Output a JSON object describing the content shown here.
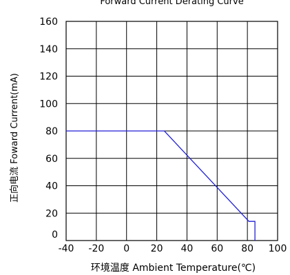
{
  "chart_data": {
    "type": "line",
    "title": "Forward Current Derating Curve",
    "xlabel": "环境温度  Ambient Temperature(℃)",
    "ylabel": "正向电流 Foward Current(mA)",
    "xlim": [
      -40,
      100
    ],
    "ylim": [
      0,
      160
    ],
    "x_ticks": [
      "-40",
      "-20",
      "0",
      "20",
      "40",
      "60",
      "80",
      "100"
    ],
    "y_ticks": [
      "0",
      "20",
      "40",
      "60",
      "80",
      "100",
      "120",
      "140",
      "160"
    ],
    "grid": true,
    "legend": "none",
    "series": [
      {
        "color": "#1f1fd6",
        "points": [
          {
            "x": -40,
            "y": 80
          },
          {
            "x": 25,
            "y": 80
          },
          {
            "x": 81,
            "y": 14
          },
          {
            "x": 85,
            "y": 14
          },
          {
            "x": 85,
            "y": 0
          }
        ]
      }
    ]
  }
}
